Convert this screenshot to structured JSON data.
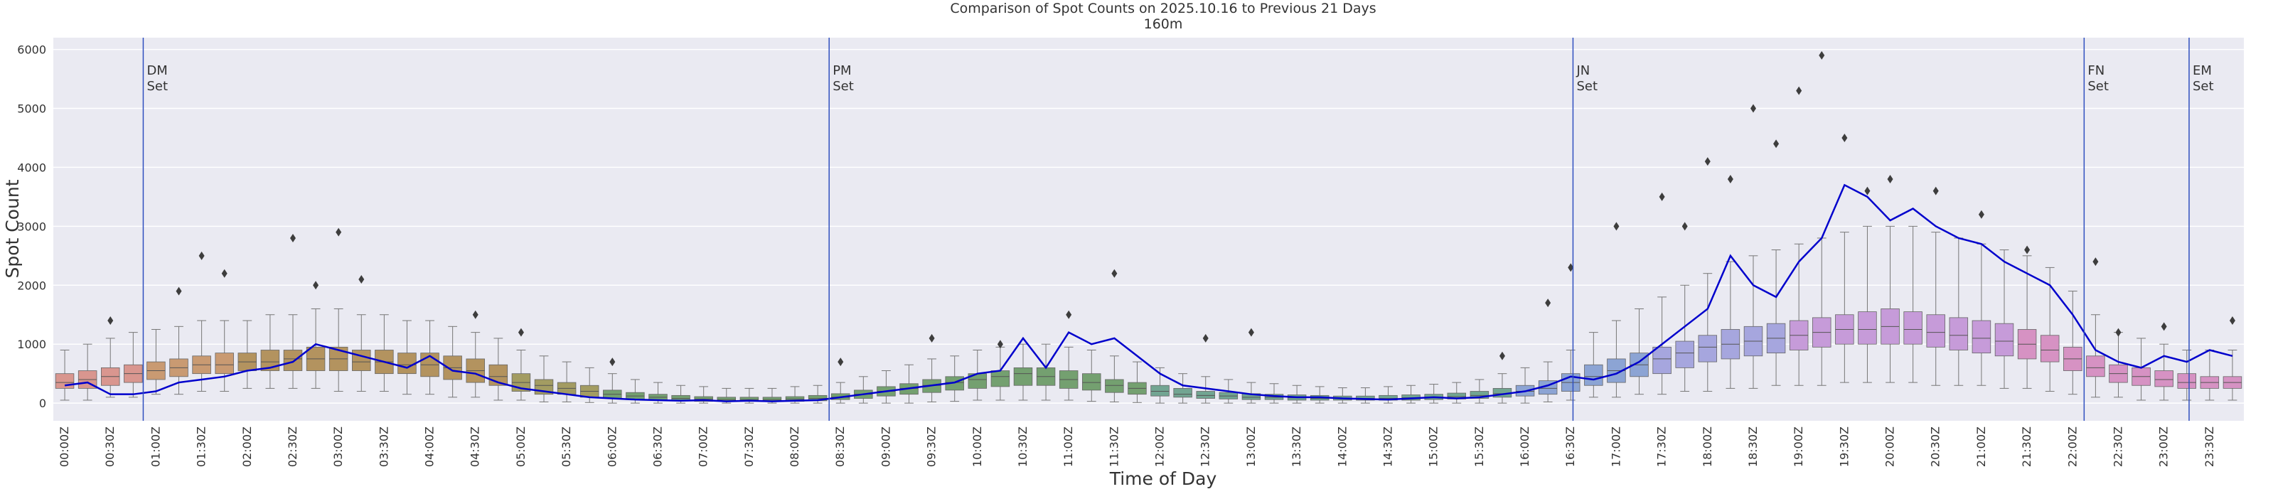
{
  "chart_data": {
    "type": "box",
    "title": "Comparison of Spot Counts on 2025.10.16 to Previous 21 Days",
    "subtitle": "160m",
    "y_label": "Spot Count",
    "x_label": "Time of Day",
    "ylim": [
      -300,
      6200
    ],
    "yticks": [
      0,
      1000,
      2000,
      3000,
      4000,
      5000,
      6000
    ],
    "grid": true,
    "categories": [
      "00:00Z",
      null,
      "00:30Z",
      null,
      "01:00Z",
      null,
      "01:30Z",
      null,
      "02:00Z",
      null,
      "02:30Z",
      null,
      "03:00Z",
      null,
      "03:30Z",
      null,
      "04:00Z",
      null,
      "04:30Z",
      null,
      "05:00Z",
      null,
      "05:30Z",
      null,
      "06:00Z",
      null,
      "06:30Z",
      null,
      "07:00Z",
      null,
      "07:30Z",
      null,
      "08:00Z",
      null,
      "08:30Z",
      null,
      "09:00Z",
      null,
      "09:30Z",
      null,
      "10:00Z",
      null,
      "10:30Z",
      null,
      "11:00Z",
      null,
      "11:30Z",
      null,
      "12:00Z",
      null,
      "12:30Z",
      null,
      "13:00Z",
      null,
      "13:30Z",
      null,
      "14:00Z",
      null,
      "14:30Z",
      null,
      "15:00Z",
      null,
      "15:30Z",
      null,
      "16:00Z",
      null,
      "16:30Z",
      null,
      "17:00Z",
      null,
      "17:30Z",
      null,
      "18:00Z",
      null,
      "18:30Z",
      null,
      "19:00Z",
      null,
      "19:30Z",
      null,
      "20:00Z",
      null,
      "20:30Z",
      null,
      "21:00Z",
      null,
      "21:30Z",
      null,
      "22:00Z",
      null,
      "22:30Z",
      null,
      "23:00Z",
      null,
      "23:30Z",
      null
    ],
    "boxes": {
      "whislo": [
        50,
        50,
        100,
        100,
        150,
        150,
        200,
        200,
        250,
        250,
        250,
        250,
        200,
        200,
        200,
        150,
        150,
        100,
        100,
        50,
        50,
        20,
        20,
        10,
        0,
        0,
        0,
        0,
        0,
        0,
        0,
        0,
        0,
        0,
        0,
        0,
        0,
        0,
        20,
        30,
        50,
        50,
        50,
        50,
        50,
        30,
        20,
        10,
        0,
        0,
        0,
        0,
        0,
        0,
        0,
        0,
        0,
        0,
        0,
        0,
        0,
        0,
        0,
        0,
        0,
        20,
        50,
        100,
        100,
        150,
        150,
        200,
        200,
        250,
        250,
        300,
        300,
        300,
        350,
        350,
        350,
        350,
        300,
        300,
        300,
        250,
        250,
        200,
        150,
        100,
        100,
        50,
        50,
        50,
        50,
        50
      ],
      "q1": [
        250,
        250,
        300,
        350,
        400,
        450,
        500,
        500,
        550,
        550,
        550,
        550,
        550,
        550,
        500,
        500,
        450,
        400,
        350,
        300,
        200,
        150,
        150,
        100,
        80,
        60,
        50,
        40,
        30,
        30,
        30,
        30,
        30,
        40,
        60,
        80,
        120,
        150,
        180,
        220,
        250,
        280,
        300,
        300,
        250,
        220,
        180,
        150,
        120,
        100,
        80,
        70,
        60,
        60,
        50,
        50,
        50,
        50,
        50,
        50,
        60,
        70,
        80,
        100,
        120,
        150,
        200,
        300,
        350,
        450,
        500,
        600,
        700,
        750,
        800,
        850,
        900,
        950,
        1000,
        1000,
        1000,
        1000,
        950,
        900,
        850,
        800,
        750,
        700,
        550,
        450,
        350,
        300,
        280,
        250,
        250,
        250
      ],
      "median": [
        350,
        400,
        450,
        500,
        550,
        600,
        650,
        650,
        700,
        700,
        750,
        750,
        750,
        700,
        700,
        650,
        650,
        600,
        550,
        450,
        350,
        300,
        250,
        200,
        150,
        120,
        100,
        80,
        70,
        60,
        60,
        60,
        70,
        80,
        100,
        150,
        200,
        250,
        300,
        350,
        400,
        450,
        500,
        450,
        400,
        350,
        300,
        250,
        200,
        150,
        130,
        120,
        100,
        100,
        90,
        80,
        80,
        80,
        80,
        90,
        100,
        110,
        130,
        160,
        200,
        250,
        350,
        450,
        550,
        650,
        750,
        850,
        950,
        1000,
        1050,
        1100,
        1150,
        1200,
        1250,
        1250,
        1300,
        1250,
        1200,
        1150,
        1100,
        1050,
        1000,
        900,
        750,
        600,
        500,
        450,
        400,
        350,
        350,
        350
      ],
      "q3": [
        500,
        550,
        600,
        650,
        700,
        750,
        800,
        850,
        850,
        900,
        900,
        950,
        950,
        900,
        900,
        850,
        850,
        800,
        750,
        650,
        500,
        400,
        350,
        300,
        220,
        180,
        150,
        130,
        110,
        100,
        100,
        100,
        110,
        130,
        160,
        220,
        280,
        330,
        400,
        450,
        500,
        550,
        600,
        600,
        550,
        500,
        400,
        350,
        300,
        250,
        200,
        180,
        160,
        150,
        140,
        130,
        120,
        120,
        130,
        140,
        150,
        170,
        200,
        250,
        300,
        380,
        500,
        650,
        750,
        850,
        950,
        1050,
        1150,
        1250,
        1300,
        1350,
        1400,
        1450,
        1500,
        1550,
        1600,
        1550,
        1500,
        1450,
        1400,
        1350,
        1250,
        1150,
        950,
        800,
        650,
        600,
        550,
        500,
        450,
        450
      ],
      "whishi": [
        900,
        1000,
        1100,
        1200,
        1250,
        1300,
        1400,
        1400,
        1400,
        1500,
        1500,
        1600,
        1600,
        1500,
        1500,
        1400,
        1400,
        1300,
        1200,
        1100,
        900,
        800,
        700,
        600,
        500,
        400,
        350,
        300,
        280,
        250,
        250,
        250,
        280,
        300,
        350,
        450,
        550,
        650,
        750,
        800,
        900,
        950,
        1000,
        1000,
        950,
        900,
        800,
        700,
        600,
        500,
        450,
        400,
        350,
        330,
        300,
        280,
        260,
        260,
        280,
        300,
        320,
        350,
        400,
        500,
        600,
        700,
        900,
        1200,
        1400,
        1600,
        1800,
        2000,
        2200,
        2400,
        2500,
        2600,
        2700,
        2800,
        2900,
        3000,
        3000,
        3000,
        2900,
        2800,
        2700,
        2600,
        2500,
        2300,
        1900,
        1500,
        1200,
        1100,
        1000,
        900,
        900,
        900
      ],
      "colors": [
        "#d9968f",
        "#d9968f",
        "#d9968f",
        "#d9968f",
        "#c99a72",
        "#c99a72",
        "#c99a72",
        "#c99a72",
        "#b3935f",
        "#b3935f",
        "#b3935f",
        "#b3935f",
        "#b3935f",
        "#b3935f",
        "#b3935f",
        "#b3935f",
        "#b3935f",
        "#b3935f",
        "#b3935f",
        "#b3935f",
        "#a39c62",
        "#a39c62",
        "#a39c62",
        "#a39c62",
        "#74a070",
        "#74a070",
        "#74a070",
        "#74a070",
        "#74a070",
        "#74a070",
        "#74a070",
        "#74a070",
        "#74a070",
        "#74a070",
        "#74a070",
        "#74a070",
        "#74a070",
        "#74a070",
        "#74a070",
        "#74a070",
        "#74a070",
        "#74a070",
        "#74a070",
        "#74a070",
        "#74a070",
        "#74a070",
        "#74a070",
        "#74a070",
        "#72a592",
        "#72a592",
        "#72a592",
        "#72a592",
        "#72a592",
        "#72a592",
        "#72a592",
        "#72a592",
        "#72a592",
        "#72a592",
        "#72a592",
        "#72a592",
        "#72a592",
        "#72a592",
        "#72a592",
        "#72a592",
        "#8ca4d4",
        "#8ca4d4",
        "#8ca4d4",
        "#8ca4d4",
        "#8ca4d4",
        "#8ca4d4",
        "#a6a6de",
        "#a6a6de",
        "#a6a6de",
        "#a6a6de",
        "#a6a6de",
        "#a6a6de",
        "#c69bd9",
        "#c69bd9",
        "#c69bd9",
        "#c69bd9",
        "#c69bd9",
        "#c69bd9",
        "#c69bd9",
        "#c69bd9",
        "#c69bd9",
        "#c69bd9",
        "#d692c3",
        "#d692c3",
        "#d692c3",
        "#d692c3",
        "#d692c3",
        "#d692c3",
        "#d692c3",
        "#d692c3",
        "#d692c3",
        "#d692c3"
      ]
    },
    "outliers": [
      {
        "x": 2,
        "value": 1400
      },
      {
        "x": 5,
        "value": 1900
      },
      {
        "x": 6,
        "value": 2500
      },
      {
        "x": 7,
        "value": 2200
      },
      {
        "x": 10,
        "value": 2800
      },
      {
        "x": 11,
        "value": 2000
      },
      {
        "x": 12,
        "value": 2900
      },
      {
        "x": 13,
        "value": 2100
      },
      {
        "x": 18,
        "value": 1500
      },
      {
        "x": 20,
        "value": 1200
      },
      {
        "x": 24,
        "value": 700
      },
      {
        "x": 34,
        "value": 700
      },
      {
        "x": 38,
        "value": 1100
      },
      {
        "x": 41,
        "value": 1000
      },
      {
        "x": 44,
        "value": 1500
      },
      {
        "x": 46,
        "value": 2200
      },
      {
        "x": 50,
        "value": 1100
      },
      {
        "x": 52,
        "value": 1200
      },
      {
        "x": 63,
        "value": 800
      },
      {
        "x": 65,
        "value": 1700
      },
      {
        "x": 66,
        "value": 2300
      },
      {
        "x": 68,
        "value": 3000
      },
      {
        "x": 70,
        "value": 3500
      },
      {
        "x": 71,
        "value": 3000
      },
      {
        "x": 72,
        "value": 4100
      },
      {
        "x": 73,
        "value": 3800
      },
      {
        "x": 74,
        "value": 5000
      },
      {
        "x": 75,
        "value": 4400
      },
      {
        "x": 76,
        "value": 5300
      },
      {
        "x": 77,
        "value": 5900
      },
      {
        "x": 78,
        "value": 4500
      },
      {
        "x": 79,
        "value": 3600
      },
      {
        "x": 80,
        "value": 3800
      },
      {
        "x": 82,
        "value": 3600
      },
      {
        "x": 84,
        "value": 3200
      },
      {
        "x": 86,
        "value": 2600
      },
      {
        "x": 89,
        "value": 2400
      },
      {
        "x": 90,
        "value": 1200
      },
      {
        "x": 92,
        "value": 1300
      },
      {
        "x": 95,
        "value": 1400
      }
    ],
    "line": {
      "color": "#0000cc",
      "values": [
        300,
        350,
        150,
        150,
        200,
        350,
        400,
        450,
        550,
        600,
        700,
        1000,
        900,
        800,
        700,
        600,
        800,
        550,
        500,
        350,
        250,
        200,
        150,
        100,
        80,
        60,
        50,
        40,
        50,
        30,
        40,
        30,
        40,
        50,
        100,
        150,
        200,
        250,
        300,
        350,
        500,
        550,
        1100,
        600,
        1200,
        1000,
        1100,
        800,
        500,
        300,
        250,
        200,
        150,
        120,
        100,
        100,
        80,
        70,
        60,
        80,
        100,
        80,
        100,
        150,
        200,
        300,
        450,
        400,
        500,
        700,
        1000,
        1300,
        1600,
        2500,
        2000,
        1800,
        2400,
        2800,
        3700,
        3500,
        3100,
        3300,
        3000,
        2800,
        2700,
        2400,
        2200,
        2000,
        1500,
        900,
        700,
        600,
        800,
        700,
        900,
        800
      ]
    },
    "annotations": [
      {
        "lines": [
          "DM",
          "Set"
        ],
        "x": 3.44
      },
      {
        "lines": [
          "PM",
          "Set"
        ],
        "x": 33.5
      },
      {
        "lines": [
          "JN",
          "Set"
        ],
        "x": 66.1
      },
      {
        "lines": [
          "FN",
          "Set"
        ],
        "x": 88.5
      },
      {
        "lines": [
          "EM",
          "Set"
        ],
        "x": 93.1
      }
    ],
    "annotation_color": "#2f4fbf"
  }
}
